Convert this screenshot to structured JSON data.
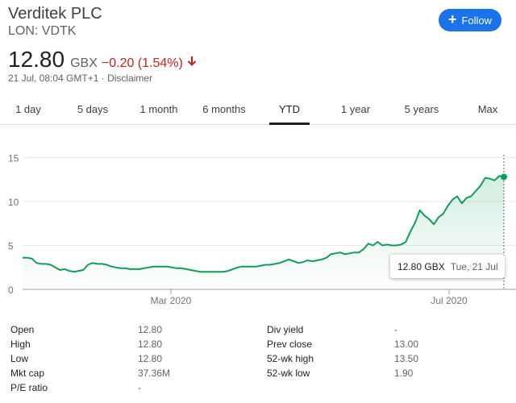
{
  "header": {
    "company_name": "Verditek PLC",
    "ticker": "LON: VDTK",
    "follow_label": "Follow"
  },
  "quote": {
    "price": "12.80",
    "currency": "GBX",
    "change": "−0.20 (1.54%)",
    "timestamp": "21 Jul, 08:04 GMT+1",
    "separator": "·",
    "disclaimer": "Disclaimer"
  },
  "tabs": [
    {
      "label": "1 day"
    },
    {
      "label": "5 days"
    },
    {
      "label": "1 month"
    },
    {
      "label": "6 months"
    },
    {
      "label": "YTD",
      "active": true
    },
    {
      "label": "1 year"
    },
    {
      "label": "5 years"
    },
    {
      "label": "Max"
    }
  ],
  "colors": {
    "line": "#0f9d58",
    "negative": "#c5221f",
    "accent": "#1a73e8"
  },
  "chart_data": {
    "type": "line",
    "y_ticks": [
      "0",
      "5",
      "10",
      "15"
    ],
    "ylim": [
      0,
      16
    ],
    "x_ticks": [
      "Mar 2020",
      "Jul 2020"
    ],
    "grid": true,
    "series": [
      {
        "values": [
          3.6,
          3.6,
          3.5,
          3.0,
          2.9,
          2.9,
          2.8,
          2.5,
          2.2,
          2.3,
          2.1,
          2.0,
          2.1,
          2.2,
          2.8,
          3.0,
          2.9,
          2.9,
          2.8,
          2.6,
          2.5,
          2.4,
          2.4,
          2.3,
          2.3,
          2.3,
          2.4,
          2.5,
          2.6,
          2.6,
          2.6,
          2.6,
          2.5,
          2.4,
          2.4,
          2.3,
          2.2,
          2.1,
          2.0,
          2.0,
          2.0,
          2.0,
          2.0,
          2.0,
          2.1,
          2.3,
          2.5,
          2.6,
          2.6,
          2.6,
          2.6,
          2.7,
          2.8,
          2.8,
          2.9,
          3.0,
          3.2,
          3.4,
          3.2,
          3.0,
          3.1,
          3.3,
          3.2,
          3.3,
          3.4,
          3.6,
          4.0,
          4.1,
          4.2,
          4.0,
          4.1,
          4.2,
          4.2,
          4.6,
          5.2,
          5.0,
          5.4,
          5.0,
          5.1,
          5.0,
          5.0,
          5.1,
          5.4,
          6.6,
          7.6,
          9.0,
          8.4,
          8.0,
          7.4,
          8.2,
          8.6,
          9.5,
          10.2,
          10.6,
          9.8,
          10.4,
          10.6,
          11.2,
          11.8,
          12.7,
          12.6,
          12.4,
          12.9,
          12.8
        ]
      }
    ],
    "tooltip": {
      "price": "12.80 GBX",
      "date": "Tue, 21 Jul"
    }
  },
  "stats": [
    {
      "label": "Open",
      "value": "12.80"
    },
    {
      "label": "High",
      "value": "12.80"
    },
    {
      "label": "Low",
      "value": "12.80"
    },
    {
      "label": "Mkt cap",
      "value": "37.36M"
    },
    {
      "label": "P/E ratio",
      "value": "-"
    },
    {
      "label": "Div yield",
      "value": "-"
    },
    {
      "label": "Prev close",
      "value": "13.00"
    },
    {
      "label": "52-wk high",
      "value": "13.50"
    },
    {
      "label": "52-wk low",
      "value": "1.90"
    }
  ]
}
